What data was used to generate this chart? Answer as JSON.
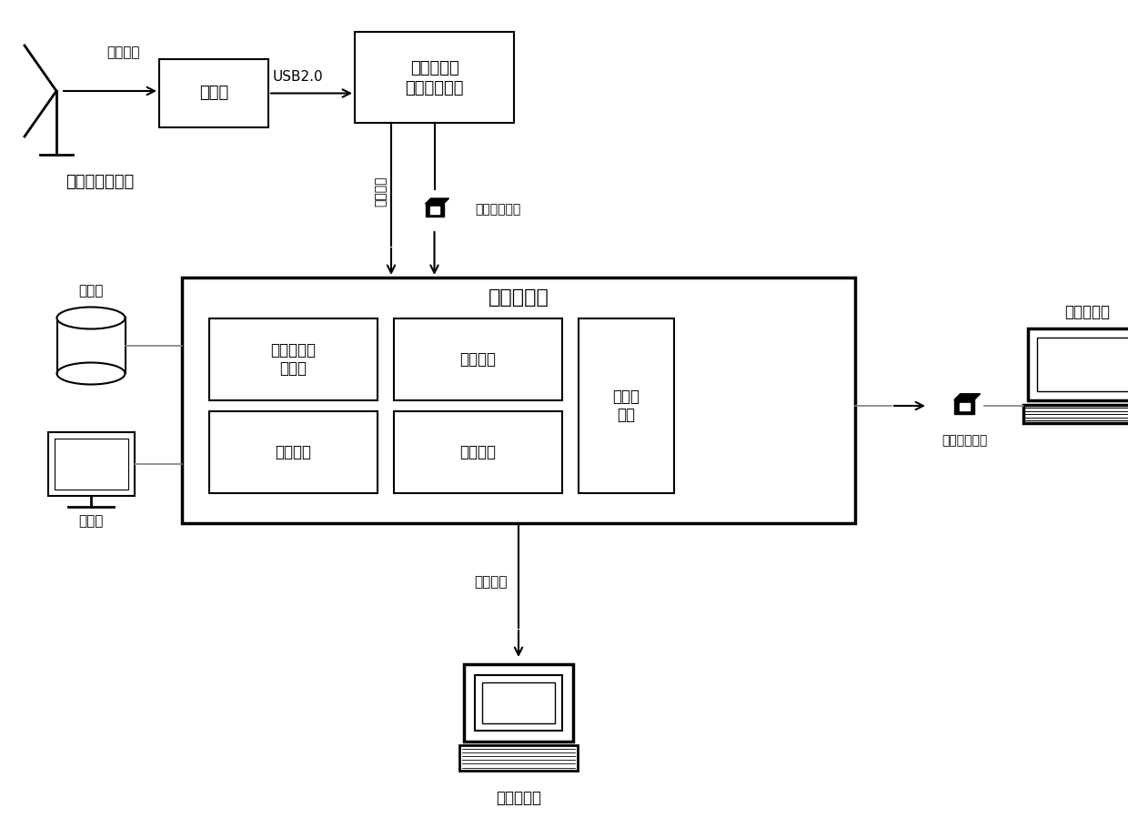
{
  "bg_color": "#ffffff",
  "radar_label": "雷达回波",
  "caiji_ka": "采集卡",
  "caiji_processor_line1": "采集处理器",
  "caiji_processor_line2": "（生成文件）",
  "usb_label": "USB2.0",
  "wangluochuanshu": "网络传输",
  "yidongcunchu1": "移动存储媒体",
  "radar_station_label": "雷达现场工作站",
  "database_label": "数据库",
  "display_label": "显示器",
  "mgmt_title": "管理服务器",
  "sub_box0": "文件分级分\n类存储",
  "sub_box1": "文件检索",
  "sub_box2": "人机交互",
  "sub_box3": "文件截取",
  "wenjianzaibian": "文件再\n编辑",
  "yidongcunchu2": "移动存储媒体",
  "local_client_label": "本地客户端",
  "tongxin_label": "通信协议",
  "remote_client_label": "远程客户端"
}
